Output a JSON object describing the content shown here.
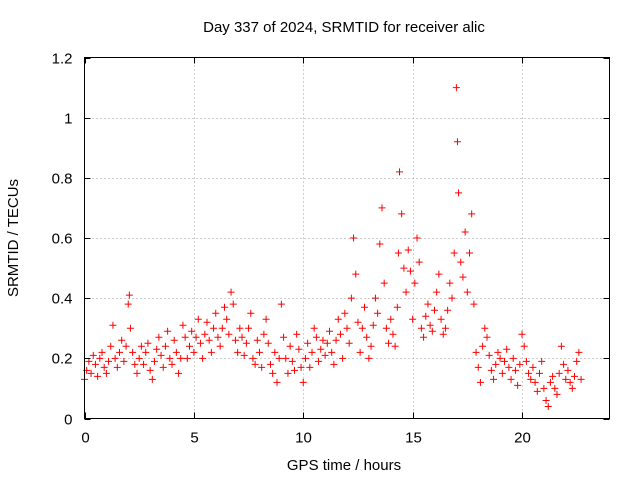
{
  "chart_data": {
    "type": "scatter",
    "title": "Day 337 of 2024, SRMTID for receiver alic",
    "xlabel": "GPS time / hours",
    "ylabel": "SRMTID / TECUs",
    "xlim": [
      0,
      24
    ],
    "ylim": [
      0,
      1.2
    ],
    "x_ticks": [
      0,
      5,
      10,
      15,
      20
    ],
    "x_tick_labels": [
      "0",
      "5",
      "10",
      "15",
      "20"
    ],
    "y_ticks": [
      0,
      0.2,
      0.4,
      0.6,
      0.8,
      1.0,
      1.2
    ],
    "y_tick_labels": [
      "0",
      "0.2",
      "0.4",
      "0.6",
      "0.8",
      "1",
      "1.2"
    ],
    "grid": true,
    "marker": "+",
    "series": [
      {
        "name": "SRMTID",
        "color": "#ff0000",
        "x": [
          0.0,
          0.1,
          0.2,
          0.3,
          0.4,
          0.5,
          0.6,
          0.7,
          0.8,
          0.9,
          1.0,
          1.1,
          1.2,
          1.3,
          1.4,
          1.5,
          1.6,
          1.7,
          1.8,
          1.9,
          2.0,
          2.05,
          2.1,
          2.2,
          2.3,
          2.4,
          2.5,
          2.6,
          2.7,
          2.8,
          2.9,
          3.0,
          3.1,
          3.2,
          3.3,
          3.4,
          3.5,
          3.6,
          3.7,
          3.8,
          3.9,
          4.0,
          4.1,
          4.2,
          4.3,
          4.4,
          4.5,
          4.6,
          4.7,
          4.8,
          4.9,
          5.0,
          5.1,
          5.2,
          5.3,
          5.4,
          5.5,
          5.6,
          5.7,
          5.8,
          5.9,
          6.0,
          6.1,
          6.2,
          6.3,
          6.4,
          6.5,
          6.6,
          6.7,
          6.8,
          6.9,
          7.0,
          7.1,
          7.2,
          7.3,
          7.4,
          7.5,
          7.6,
          7.7,
          7.8,
          7.9,
          8.0,
          8.1,
          8.2,
          8.3,
          8.4,
          8.5,
          8.6,
          8.7,
          8.8,
          8.9,
          9.0,
          9.1,
          9.2,
          9.3,
          9.4,
          9.5,
          9.6,
          9.7,
          9.8,
          9.9,
          10.0,
          10.1,
          10.2,
          10.3,
          10.4,
          10.5,
          10.6,
          10.7,
          10.8,
          10.9,
          11.0,
          11.1,
          11.2,
          11.3,
          11.4,
          11.5,
          11.6,
          11.7,
          11.8,
          11.9,
          12.0,
          12.1,
          12.2,
          12.3,
          12.4,
          12.5,
          12.6,
          12.7,
          12.8,
          12.9,
          13.0,
          13.1,
          13.2,
          13.3,
          13.4,
          13.5,
          13.6,
          13.7,
          13.8,
          13.9,
          14.0,
          14.1,
          14.2,
          14.3,
          14.35,
          14.4,
          14.5,
          14.6,
          14.7,
          14.8,
          14.9,
          15.0,
          15.1,
          15.2,
          15.3,
          15.4,
          15.5,
          15.6,
          15.7,
          15.8,
          15.9,
          16.0,
          16.1,
          16.2,
          16.3,
          16.4,
          16.5,
          16.6,
          16.7,
          16.8,
          16.9,
          17.0,
          17.05,
          17.1,
          17.2,
          17.3,
          17.4,
          17.5,
          17.6,
          17.7,
          17.8,
          17.9,
          18.0,
          18.1,
          18.2,
          18.3,
          18.4,
          18.5,
          18.6,
          18.7,
          18.8,
          18.9,
          19.0,
          19.1,
          19.2,
          19.3,
          19.4,
          19.5,
          19.6,
          19.7,
          19.8,
          19.9,
          20.0,
          20.1,
          20.2,
          20.3,
          20.4,
          20.5,
          20.6,
          20.7,
          20.8,
          20.9,
          21.0,
          21.1,
          21.2,
          21.3,
          21.4,
          21.5,
          21.6,
          21.7,
          21.8,
          21.9,
          22.0,
          22.1,
          22.2,
          22.3,
          22.4,
          22.5,
          22.6,
          22.7
        ],
        "y": [
          0.13,
          0.16,
          0.19,
          0.15,
          0.21,
          0.18,
          0.14,
          0.2,
          0.22,
          0.17,
          0.15,
          0.19,
          0.24,
          0.31,
          0.2,
          0.17,
          0.22,
          0.26,
          0.19,
          0.24,
          0.38,
          0.41,
          0.3,
          0.22,
          0.18,
          0.15,
          0.2,
          0.24,
          0.18,
          0.22,
          0.25,
          0.16,
          0.13,
          0.19,
          0.23,
          0.27,
          0.21,
          0.17,
          0.24,
          0.29,
          0.2,
          0.18,
          0.26,
          0.22,
          0.15,
          0.2,
          0.31,
          0.27,
          0.2,
          0.24,
          0.29,
          0.22,
          0.27,
          0.33,
          0.25,
          0.2,
          0.28,
          0.32,
          0.26,
          0.22,
          0.3,
          0.35,
          0.27,
          0.24,
          0.3,
          0.37,
          0.33,
          0.28,
          0.42,
          0.38,
          0.26,
          0.22,
          0.3,
          0.27,
          0.21,
          0.25,
          0.3,
          0.35,
          0.2,
          0.18,
          0.26,
          0.22,
          0.17,
          0.28,
          0.33,
          0.25,
          0.18,
          0.15,
          0.22,
          0.12,
          0.2,
          0.38,
          0.27,
          0.2,
          0.15,
          0.24,
          0.19,
          0.16,
          0.28,
          0.23,
          0.17,
          0.12,
          0.2,
          0.25,
          0.17,
          0.22,
          0.3,
          0.27,
          0.19,
          0.23,
          0.26,
          0.21,
          0.25,
          0.29,
          0.22,
          0.18,
          0.26,
          0.33,
          0.28,
          0.2,
          0.35,
          0.3,
          0.25,
          0.4,
          0.6,
          0.48,
          0.32,
          0.22,
          0.3,
          0.37,
          0.27,
          0.2,
          0.24,
          0.31,
          0.4,
          0.35,
          0.58,
          0.7,
          0.45,
          0.3,
          0.25,
          0.33,
          0.28,
          0.24,
          0.37,
          0.55,
          0.82,
          0.68,
          0.5,
          0.42,
          0.56,
          0.49,
          0.33,
          0.45,
          0.6,
          0.52,
          0.3,
          0.27,
          0.34,
          0.38,
          0.31,
          0.29,
          0.36,
          0.42,
          0.48,
          0.33,
          0.28,
          0.3,
          0.36,
          0.45,
          0.4,
          0.55,
          1.1,
          0.92,
          0.75,
          0.52,
          0.47,
          0.62,
          0.42,
          0.55,
          0.68,
          0.38,
          0.22,
          0.17,
          0.12,
          0.24,
          0.3,
          0.27,
          0.21,
          0.16,
          0.13,
          0.18,
          0.22,
          0.2,
          0.15,
          0.19,
          0.23,
          0.17,
          0.13,
          0.2,
          0.16,
          0.11,
          0.18,
          0.28,
          0.24,
          0.19,
          0.15,
          0.13,
          0.17,
          0.12,
          0.09,
          0.15,
          0.19,
          0.1,
          0.06,
          0.04,
          0.12,
          0.14,
          0.1,
          0.08,
          0.15,
          0.24,
          0.18,
          0.13,
          0.16,
          0.12,
          0.1,
          0.14,
          0.19,
          0.22,
          0.13
        ]
      }
    ]
  }
}
